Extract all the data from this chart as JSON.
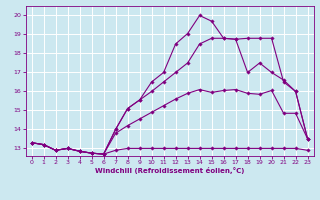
{
  "title": "",
  "xlabel": "Windchill (Refroidissement éolien,°C)",
  "ylabel": "",
  "background_color": "#cce8f0",
  "grid_color": "#ffffff",
  "line_color": "#800080",
  "xlim": [
    -0.5,
    23.5
  ],
  "ylim": [
    12.6,
    20.5
  ],
  "xticks": [
    0,
    1,
    2,
    3,
    4,
    5,
    6,
    7,
    8,
    9,
    10,
    11,
    12,
    13,
    14,
    15,
    16,
    17,
    18,
    19,
    20,
    21,
    22,
    23
  ],
  "yticks": [
    13,
    14,
    15,
    16,
    17,
    18,
    19,
    20
  ],
  "series": [
    [
      13.3,
      13.2,
      12.9,
      13.0,
      12.85,
      12.75,
      12.7,
      12.9,
      13.0,
      13.0,
      13.0,
      13.0,
      13.0,
      13.0,
      13.0,
      13.0,
      13.0,
      13.0,
      13.0,
      13.0,
      13.0,
      13.0,
      13.0,
      12.9
    ],
    [
      13.3,
      13.2,
      12.9,
      13.0,
      12.85,
      12.75,
      12.7,
      13.8,
      14.2,
      14.55,
      14.9,
      15.25,
      15.6,
      15.9,
      16.1,
      15.95,
      16.05,
      16.1,
      15.9,
      15.85,
      16.05,
      14.85,
      14.85,
      13.5
    ],
    [
      13.3,
      13.2,
      12.9,
      13.0,
      12.85,
      12.75,
      12.7,
      14.0,
      15.1,
      15.55,
      16.0,
      16.5,
      17.0,
      17.5,
      18.5,
      18.8,
      18.8,
      18.75,
      17.0,
      17.5,
      17.0,
      16.6,
      16.0,
      13.5
    ],
    [
      13.3,
      13.2,
      12.9,
      13.0,
      12.85,
      12.75,
      12.7,
      14.0,
      15.1,
      15.55,
      16.5,
      17.0,
      18.5,
      19.05,
      20.0,
      19.7,
      18.8,
      18.75,
      18.8,
      18.8,
      18.8,
      16.5,
      16.0,
      13.5
    ]
  ]
}
